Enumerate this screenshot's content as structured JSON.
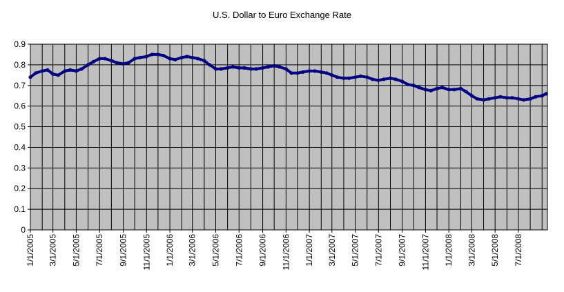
{
  "chart_data": {
    "type": "line",
    "title": "U.S. Dollar to Euro Exchange Rate",
    "xlabel": "",
    "ylabel": "",
    "ylim": [
      0,
      0.9
    ],
    "yticks": [
      0,
      0.1,
      0.2,
      0.3,
      0.4,
      0.5,
      0.6,
      0.7,
      0.8,
      0.9
    ],
    "xlim": [
      "2005-01-01",
      "2008-09-15"
    ],
    "xtick_labels": [
      "1/1/2005",
      "3/1/2005",
      "5/1/2005",
      "7/1/2005",
      "9/1/2005",
      "11/1/2005",
      "1/1/2006",
      "3/1/2006",
      "5/1/2006",
      "7/1/2006",
      "9/1/2006",
      "11/1/2006",
      "1/1/2007",
      "3/1/2007",
      "5/1/2007",
      "7/1/2007",
      "9/1/2007",
      "11/1/2007",
      "1/1/2008",
      "3/1/2008",
      "5/1/2008",
      "7/1/2008"
    ],
    "grid": true,
    "legend": "none",
    "colors": {
      "plot_background": "#c0c0c0",
      "line": "#000080",
      "grid": "#000000"
    },
    "series": [
      {
        "x": [
          "2005-01-01",
          "2005-01-15",
          "2005-02-01",
          "2005-02-15",
          "2005-03-01",
          "2005-03-15",
          "2005-04-01",
          "2005-04-15",
          "2005-05-01",
          "2005-05-15",
          "2005-06-01",
          "2005-06-15",
          "2005-07-01",
          "2005-07-15",
          "2005-08-01",
          "2005-08-15",
          "2005-09-01",
          "2005-09-15",
          "2005-10-01",
          "2005-10-15",
          "2005-11-01",
          "2005-11-15",
          "2005-12-01",
          "2005-12-15",
          "2006-01-01",
          "2006-01-15",
          "2006-02-01",
          "2006-02-15",
          "2006-03-01",
          "2006-03-15",
          "2006-04-01",
          "2006-04-15",
          "2006-05-01",
          "2006-05-15",
          "2006-06-01",
          "2006-06-15",
          "2006-07-01",
          "2006-07-15",
          "2006-08-01",
          "2006-08-15",
          "2006-09-01",
          "2006-09-15",
          "2006-10-01",
          "2006-10-15",
          "2006-11-01",
          "2006-11-15",
          "2006-12-01",
          "2006-12-15",
          "2007-01-01",
          "2007-01-15",
          "2007-02-01",
          "2007-02-15",
          "2007-03-01",
          "2007-03-15",
          "2007-04-01",
          "2007-04-15",
          "2007-05-01",
          "2007-05-15",
          "2007-06-01",
          "2007-06-15",
          "2007-07-01",
          "2007-07-15",
          "2007-08-01",
          "2007-08-15",
          "2007-09-01",
          "2007-09-15",
          "2007-10-01",
          "2007-10-15",
          "2007-11-01",
          "2007-11-15",
          "2007-12-01",
          "2007-12-15",
          "2008-01-01",
          "2008-01-15",
          "2008-02-01",
          "2008-02-15",
          "2008-03-01",
          "2008-03-15",
          "2008-04-01",
          "2008-04-15",
          "2008-05-01",
          "2008-05-15",
          "2008-06-01",
          "2008-06-15",
          "2008-07-01",
          "2008-07-15",
          "2008-08-01",
          "2008-08-15",
          "2008-09-01",
          "2008-09-12"
        ],
        "values": [
          0.74,
          0.76,
          0.77,
          0.775,
          0.755,
          0.75,
          0.77,
          0.775,
          0.77,
          0.78,
          0.8,
          0.815,
          0.83,
          0.83,
          0.82,
          0.81,
          0.805,
          0.81,
          0.83,
          0.835,
          0.84,
          0.85,
          0.85,
          0.845,
          0.83,
          0.825,
          0.835,
          0.84,
          0.835,
          0.83,
          0.82,
          0.8,
          0.78,
          0.78,
          0.785,
          0.79,
          0.785,
          0.785,
          0.78,
          0.78,
          0.785,
          0.79,
          0.795,
          0.79,
          0.78,
          0.76,
          0.76,
          0.765,
          0.77,
          0.77,
          0.765,
          0.76,
          0.75,
          0.74,
          0.735,
          0.735,
          0.74,
          0.745,
          0.74,
          0.73,
          0.725,
          0.73,
          0.735,
          0.73,
          0.72,
          0.705,
          0.7,
          0.69,
          0.68,
          0.675,
          0.685,
          0.69,
          0.68,
          0.68,
          0.685,
          0.67,
          0.65,
          0.635,
          0.63,
          0.635,
          0.64,
          0.645,
          0.64,
          0.64,
          0.635,
          0.63,
          0.635,
          0.645,
          0.65,
          0.66
        ]
      }
    ]
  }
}
